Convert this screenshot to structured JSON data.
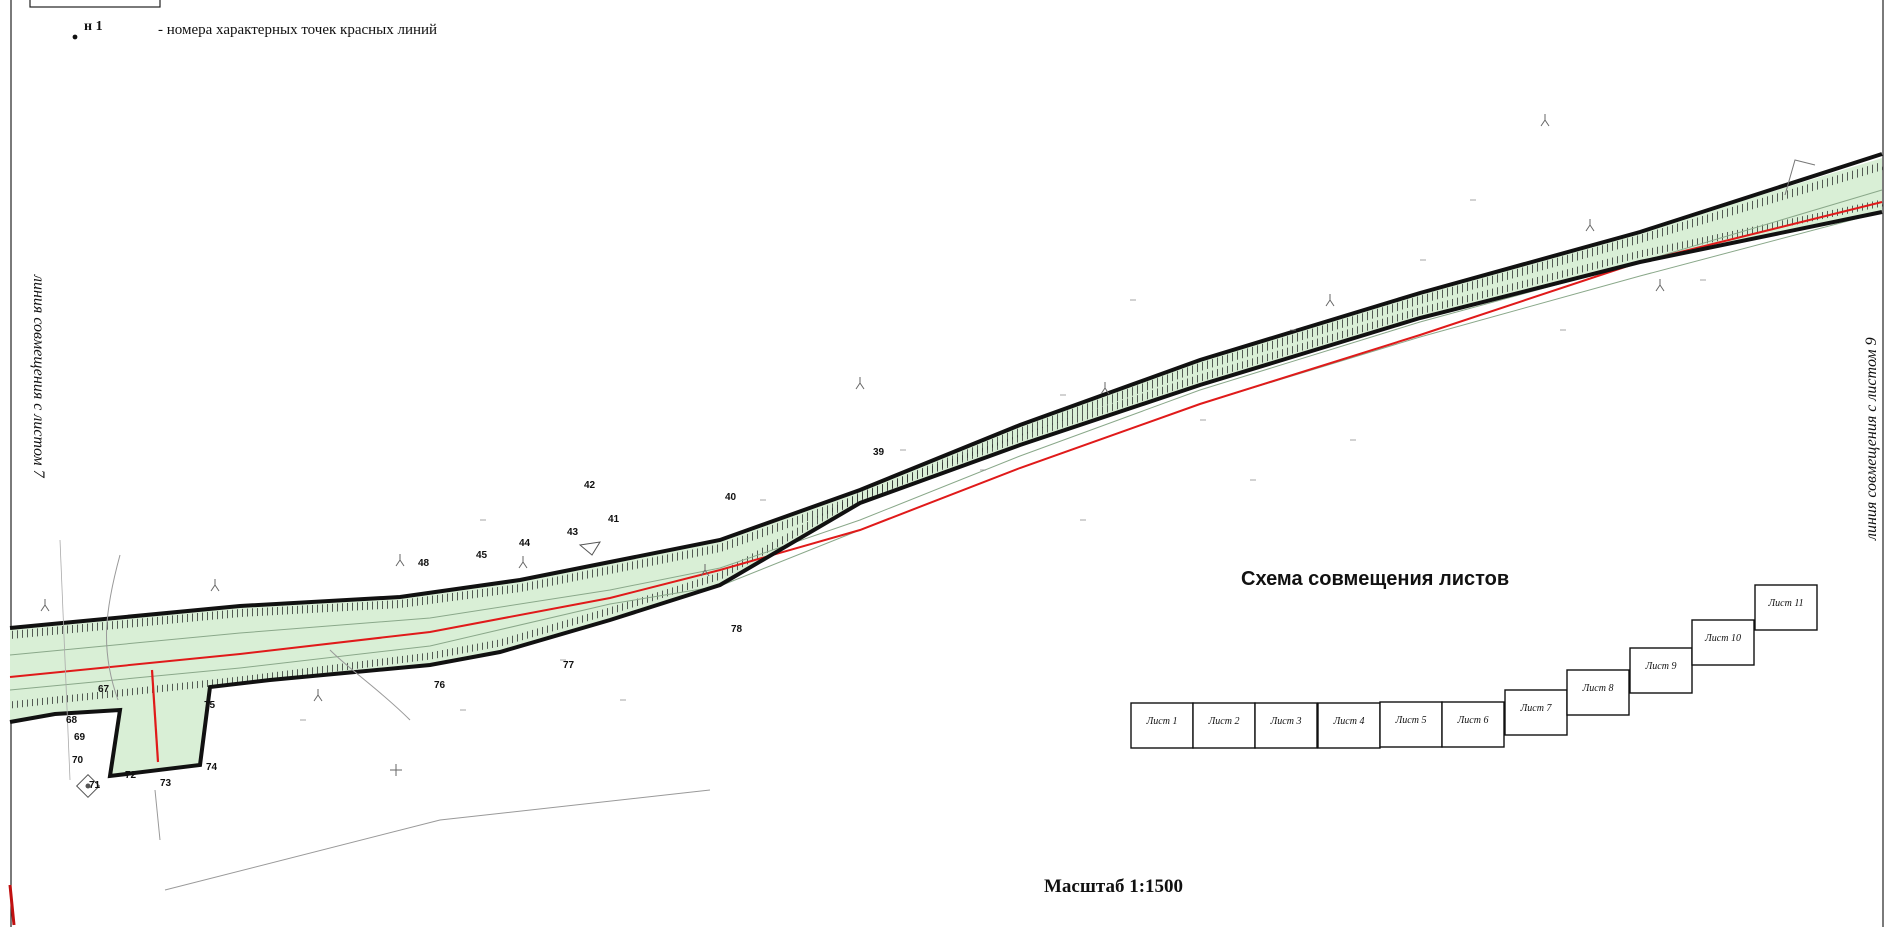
{
  "legend": {
    "point_code": "н 1",
    "point_description": "- номера характерных точек красных линий"
  },
  "edges": {
    "left": "линия совмещения с листом 7",
    "right": "линия совмещения с листом 9"
  },
  "point_numbers": [
    "39",
    "40",
    "41",
    "42",
    "43",
    "44",
    "45",
    "48",
    "67",
    "68",
    "69",
    "70",
    "71",
    "72",
    "73",
    "74",
    "75",
    "76",
    "77",
    "78"
  ],
  "scheme": {
    "title": "Схема совмещения листов",
    "sheets": [
      "Лист 1",
      "Лист 2",
      "Лист 3",
      "Лист 4",
      "Лист 5",
      "Лист 6",
      "Лист 7",
      "Лист 8",
      "Лист 9",
      "Лист 10",
      "Лист 11"
    ]
  },
  "scale": "Масштаб 1:1500",
  "colors": {
    "corridor_fill": "#d9efd6",
    "boundary": "#111111",
    "red_line": "#e01a1a",
    "inner_line": "#8aa88a"
  }
}
